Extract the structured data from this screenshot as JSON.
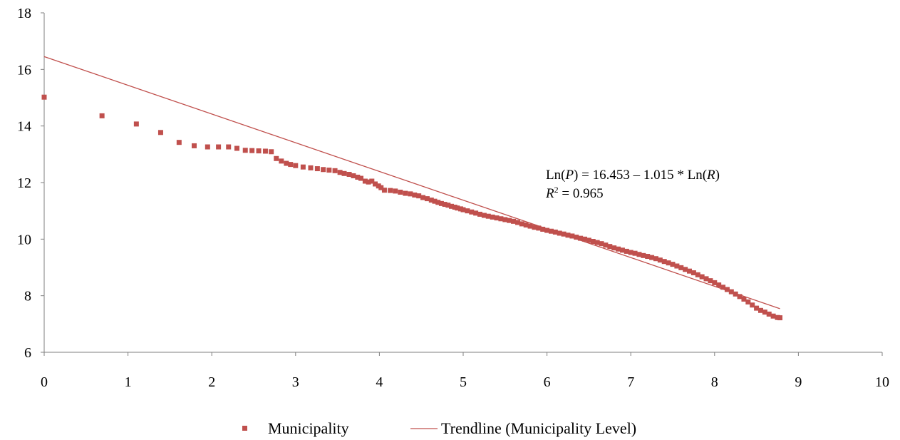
{
  "chart_data": {
    "type": "scatter",
    "title": "",
    "xlabel": "",
    "ylabel": "",
    "xlim": [
      0,
      10
    ],
    "ylim": [
      6,
      18
    ],
    "x_ticks": [
      "0",
      "1",
      "2",
      "3",
      "4",
      "5",
      "6",
      "7",
      "8",
      "9",
      "10"
    ],
    "y_ticks": [
      "6",
      "8",
      "10",
      "12",
      "14",
      "16",
      "18"
    ],
    "grid": false,
    "legend_position": "bottom",
    "series": [
      {
        "name": "Municipality",
        "kind": "scatter",
        "marker": "square",
        "color": "#c0504d",
        "points": [
          [
            0.0,
            15.02
          ],
          [
            0.69,
            14.36
          ],
          [
            1.1,
            14.07
          ],
          [
            1.39,
            13.77
          ],
          [
            1.61,
            13.42
          ],
          [
            1.79,
            13.3
          ],
          [
            1.95,
            13.26
          ],
          [
            2.08,
            13.26
          ],
          [
            2.2,
            13.26
          ],
          [
            2.3,
            13.21
          ],
          [
            2.4,
            13.14
          ],
          [
            2.48,
            13.13
          ],
          [
            2.56,
            13.12
          ],
          [
            2.64,
            13.11
          ],
          [
            2.71,
            13.09
          ],
          [
            2.77,
            12.85
          ],
          [
            2.83,
            12.76
          ],
          [
            2.89,
            12.68
          ],
          [
            2.94,
            12.64
          ],
          [
            3.0,
            12.6
          ],
          [
            3.09,
            12.55
          ],
          [
            3.18,
            12.52
          ],
          [
            3.26,
            12.49
          ],
          [
            3.33,
            12.46
          ],
          [
            3.4,
            12.44
          ],
          [
            3.47,
            12.42
          ],
          [
            3.53,
            12.36
          ],
          [
            3.58,
            12.32
          ],
          [
            3.64,
            12.29
          ],
          [
            3.69,
            12.24
          ],
          [
            3.74,
            12.19
          ],
          [
            3.78,
            12.15
          ],
          [
            3.83,
            12.05
          ],
          [
            3.87,
            12.02
          ],
          [
            3.91,
            12.05
          ],
          [
            3.95,
            11.95
          ],
          [
            3.99,
            11.88
          ],
          [
            4.02,
            11.82
          ],
          [
            4.06,
            11.73
          ],
          [
            4.13,
            11.72
          ],
          [
            4.19,
            11.7
          ],
          [
            4.25,
            11.66
          ],
          [
            4.31,
            11.62
          ],
          [
            4.37,
            11.6
          ],
          [
            4.42,
            11.56
          ],
          [
            4.47,
            11.53
          ],
          [
            4.52,
            11.47
          ],
          [
            4.57,
            11.43
          ],
          [
            4.62,
            11.38
          ],
          [
            4.66,
            11.34
          ],
          [
            4.7,
            11.3
          ],
          [
            4.74,
            11.26
          ],
          [
            4.78,
            11.23
          ],
          [
            4.82,
            11.2
          ],
          [
            4.86,
            11.16
          ],
          [
            4.9,
            11.13
          ],
          [
            4.93,
            11.1
          ],
          [
            4.97,
            11.07
          ],
          [
            5.0,
            11.04
          ],
          [
            5.05,
            11.0
          ],
          [
            5.1,
            10.96
          ],
          [
            5.15,
            10.92
          ],
          [
            5.2,
            10.88
          ],
          [
            5.25,
            10.84
          ],
          [
            5.3,
            10.81
          ],
          [
            5.35,
            10.78
          ],
          [
            5.4,
            10.75
          ],
          [
            5.45,
            10.72
          ],
          [
            5.5,
            10.69
          ],
          [
            5.55,
            10.66
          ],
          [
            5.6,
            10.63
          ],
          [
            5.65,
            10.59
          ],
          [
            5.7,
            10.54
          ],
          [
            5.75,
            10.5
          ],
          [
            5.8,
            10.46
          ],
          [
            5.85,
            10.42
          ],
          [
            5.9,
            10.39
          ],
          [
            5.95,
            10.35
          ],
          [
            6.0,
            10.31
          ],
          [
            6.05,
            10.28
          ],
          [
            6.1,
            10.25
          ],
          [
            6.15,
            10.21
          ],
          [
            6.2,
            10.18
          ],
          [
            6.25,
            10.14
          ],
          [
            6.3,
            10.11
          ],
          [
            6.35,
            10.07
          ],
          [
            6.4,
            10.03
          ],
          [
            6.45,
            10.0
          ],
          [
            6.5,
            9.96
          ],
          [
            6.55,
            9.92
          ],
          [
            6.6,
            9.88
          ],
          [
            6.65,
            9.84
          ],
          [
            6.7,
            9.79
          ],
          [
            6.75,
            9.74
          ],
          [
            6.8,
            9.69
          ],
          [
            6.85,
            9.65
          ],
          [
            6.9,
            9.61
          ],
          [
            6.95,
            9.57
          ],
          [
            7.0,
            9.53
          ],
          [
            7.05,
            9.5
          ],
          [
            7.1,
            9.46
          ],
          [
            7.15,
            9.42
          ],
          [
            7.2,
            9.39
          ],
          [
            7.25,
            9.35
          ],
          [
            7.3,
            9.31
          ],
          [
            7.35,
            9.26
          ],
          [
            7.4,
            9.21
          ],
          [
            7.45,
            9.16
          ],
          [
            7.5,
            9.11
          ],
          [
            7.55,
            9.05
          ],
          [
            7.6,
            8.99
          ],
          [
            7.65,
            8.93
          ],
          [
            7.7,
            8.87
          ],
          [
            7.75,
            8.81
          ],
          [
            7.8,
            8.74
          ],
          [
            7.85,
            8.67
          ],
          [
            7.9,
            8.6
          ],
          [
            7.95,
            8.53
          ],
          [
            8.0,
            8.46
          ],
          [
            8.05,
            8.38
          ],
          [
            8.1,
            8.3
          ],
          [
            8.15,
            8.22
          ],
          [
            8.2,
            8.14
          ],
          [
            8.25,
            8.06
          ],
          [
            8.3,
            7.97
          ],
          [
            8.35,
            7.88
          ],
          [
            8.4,
            7.78
          ],
          [
            8.45,
            7.67
          ],
          [
            8.5,
            7.56
          ],
          [
            8.55,
            7.48
          ],
          [
            8.6,
            7.42
          ],
          [
            8.65,
            7.35
          ],
          [
            8.7,
            7.28
          ],
          [
            8.75,
            7.23
          ],
          [
            8.78,
            7.22
          ]
        ]
      },
      {
        "name": "Trendline (Municipality Level)",
        "kind": "line",
        "color": "#c0504d",
        "intercept": 16.453,
        "slope": -1.015,
        "x_range": [
          0,
          8.78
        ]
      }
    ],
    "annotations": {
      "equation": {
        "prefix": "Ln(",
        "var1": "P",
        "mid": ") = 16.453 – 1.015 * Ln(",
        "var2": "R",
        "suffix": ")"
      },
      "r_squared": {
        "var": "R",
        "sup": "2",
        "value": " = 0.965"
      }
    }
  }
}
